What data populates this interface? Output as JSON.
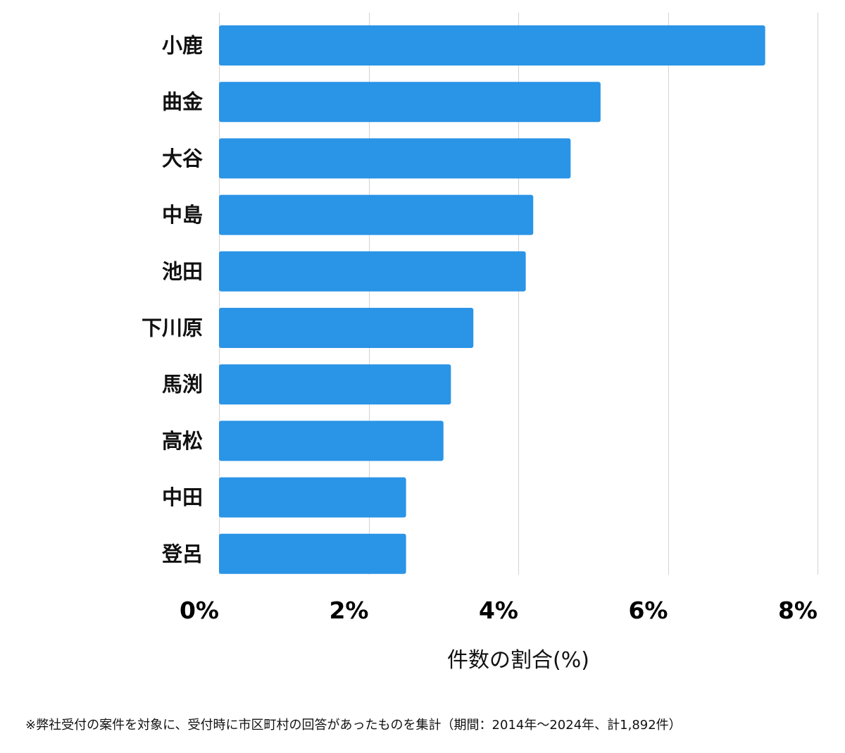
{
  "chart_data": {
    "type": "bar",
    "orientation": "horizontal",
    "categories": [
      "小鹿",
      "曲金",
      "大谷",
      "中島",
      "池田",
      "下川原",
      "馬渕",
      "高松",
      "中田",
      "登呂"
    ],
    "series": [
      {
        "values": [
          7.3,
          5.1,
          4.7,
          4.2,
          4.1,
          3.4,
          3.1,
          3.0,
          2.5,
          2.5
        ],
        "color": "#2a94e6"
      }
    ],
    "xlim": [
      0,
      8
    ],
    "xticks": [
      0,
      2,
      4,
      6,
      8
    ],
    "xtick_labels": [
      "0%",
      "2%",
      "4%",
      "6%",
      "8%"
    ],
    "xlabel": "件数の割合(%)",
    "ylabel": "",
    "title": "",
    "grid": true,
    "grid_color": "#d3d3d3",
    "legend": "none"
  },
  "footnote": "※弊社受付の案件を対象に、受付時に市区町村の回答があったものを集計（期間：2014年〜2024年、計1,892件）"
}
